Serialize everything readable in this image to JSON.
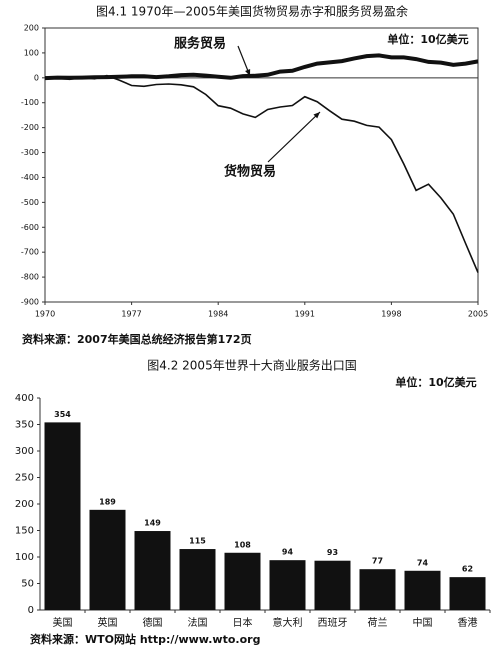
{
  "chart_data": [
    {
      "type": "line",
      "title": "图4.1  1970年—2005年美国货物贸易赤字和服务贸易盈余",
      "annotations": [
        "服务贸易",
        "单位：10亿美元",
        "货物贸易"
      ],
      "x": [
        1970,
        1971,
        1972,
        1973,
        1974,
        1975,
        1976,
        1977,
        1978,
        1979,
        1980,
        1981,
        1982,
        1983,
        1984,
        1985,
        1986,
        1987,
        1988,
        1989,
        1990,
        1991,
        1992,
        1993,
        1994,
        1995,
        1996,
        1997,
        1998,
        1999,
        2000,
        2001,
        2002,
        2003,
        2004,
        2005
      ],
      "series": [
        {
          "name": "服务贸易",
          "color": "#111111",
          "values": [
            -1,
            1,
            0,
            1,
            2,
            3,
            4,
            6,
            6,
            3,
            6,
            11,
            12,
            9,
            4,
            0,
            7,
            8,
            12,
            25,
            28,
            44,
            57,
            62,
            67,
            78,
            87,
            90,
            82,
            82,
            75,
            64,
            61,
            52,
            57,
            66
          ]
        },
        {
          "name": "货物贸易",
          "color": "#111111",
          "values": [
            3,
            -2,
            -6,
            1,
            -4,
            9,
            -9,
            -31,
            -34,
            -27,
            -25,
            -28,
            -36,
            -67,
            -112,
            -122,
            -145,
            -159,
            -127,
            -117,
            -111,
            -76,
            -96,
            -132,
            -166,
            -174,
            -191,
            -198,
            -248,
            -346,
            -452,
            -427,
            -482,
            -547,
            -665,
            -782
          ]
        }
      ],
      "xlim": [
        1970,
        2005
      ],
      "xticks": [
        1970,
        1977,
        1984,
        1991,
        1998,
        2005
      ],
      "ylim": [
        -900,
        200
      ],
      "yticks": [
        -900,
        -800,
        -700,
        -600,
        -500,
        -400,
        -300,
        -200,
        -100,
        0,
        100,
        200
      ],
      "source": "资料来源：2007年美国总统经济报告第172页"
    },
    {
      "type": "bar",
      "title": "图4.2  2005年世界十大商业服务出口国",
      "annotations": [
        "单位：10亿美元"
      ],
      "categories": [
        "美国",
        "英国",
        "德国",
        "法国",
        "日本",
        "意大利",
        "西班牙",
        "荷兰",
        "中国",
        "香港"
      ],
      "values": [
        354,
        189,
        149,
        115,
        108,
        94,
        93,
        77,
        74,
        62
      ],
      "color": "#111111",
      "ylim": [
        0,
        400
      ],
      "yticks": [
        0,
        50,
        100,
        150,
        200,
        250,
        300,
        350,
        400
      ],
      "source": "资料来源：WTO网站 http://www.wto.org"
    }
  ]
}
